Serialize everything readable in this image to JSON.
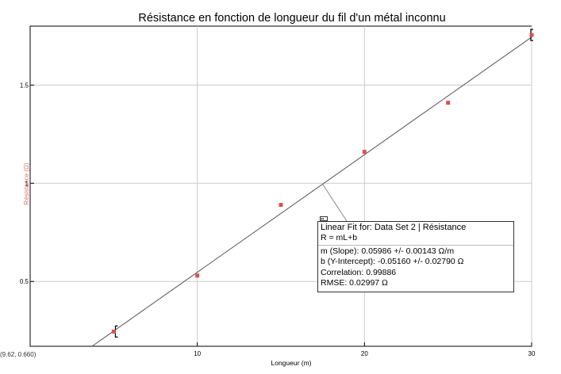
{
  "chart_data": {
    "type": "scatter",
    "title": "Résistance en fonction de longueur du fil d'un métal inconnu",
    "xlabel": "Longueur (m)",
    "ylabel": "Résistance (Ω)",
    "xlim": [
      0,
      30
    ],
    "ylim": [
      0.17,
      1.8
    ],
    "xticks": [
      10,
      20,
      30
    ],
    "yticks": [
      0.5,
      1,
      1.5
    ],
    "grid": true,
    "series": [
      {
        "x": [
          5,
          10,
          15,
          20,
          25,
          30
        ],
        "y": [
          0.245,
          0.53,
          0.89,
          1.16,
          1.41,
          1.755
        ]
      }
    ],
    "fit": {
      "slope": 0.05986,
      "intercept": -0.0516
    },
    "fit_box": {
      "title": "Linear Fit for: Data Set 2 | Résistance",
      "equation": "R = mL+b",
      "slope": "m (Slope): 0.05986 +/- 0.00143 Ω/m",
      "intercept": "b (Y-Intercept): -0.05160 +/- 0.02790 Ω",
      "correlation": "Correlation: 0.99886",
      "rmse": "RMSE: 0.02997 Ω"
    },
    "fit_box_anchor": [
      17.5,
      0.995
    ],
    "coordinate_readout": "(9.62, 0.660)",
    "colors": {
      "marker": "#d9534f",
      "ylabel": "#e07070",
      "grid": "#cccccc",
      "fit_line": "#555555",
      "axis": "#000000"
    }
  }
}
